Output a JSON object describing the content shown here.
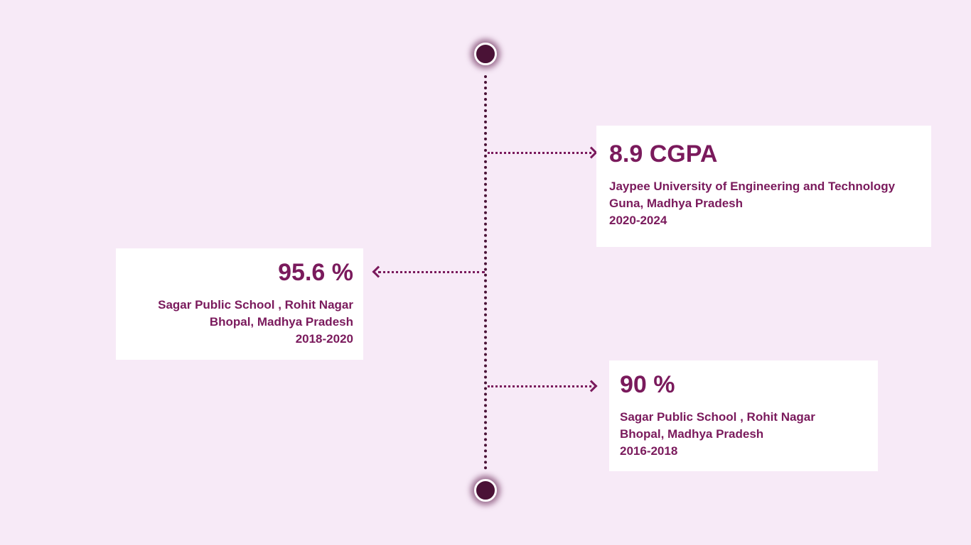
{
  "timeline": {
    "entries": [
      {
        "score": "8.9 CGPA",
        "institution": "Jaypee University of Engineering and Technology",
        "location": "Guna, Madhya Pradesh",
        "years": "2020-2024"
      },
      {
        "score": "95.6 %",
        "institution": "Sagar Public School , Rohit Nagar",
        "location": "Bhopal, Madhya Pradesh",
        "years": "2018-2020"
      },
      {
        "score": "90 %",
        "institution": "Sagar Public School , Rohit Nagar",
        "location": "Bhopal, Madhya Pradesh",
        "years": "2016-2018"
      }
    ]
  },
  "colors": {
    "background": "#f7eaf7",
    "accent": "#7a1a5c",
    "line": "#4a1236",
    "card": "#ffffff"
  }
}
